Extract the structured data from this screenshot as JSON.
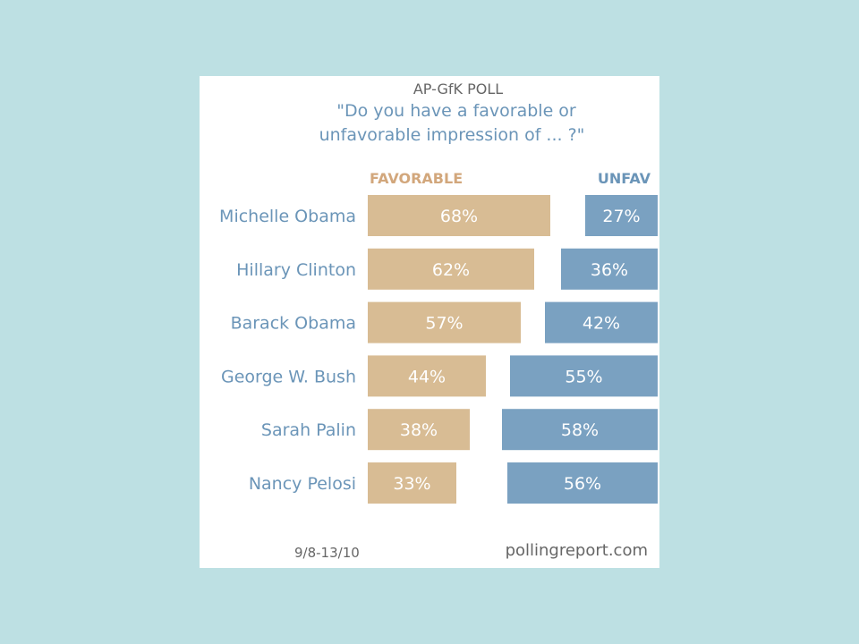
{
  "chart_data": {
    "type": "bar",
    "title": "AP-GfK POLL",
    "question_line1": "\"Do you have a favorable or",
    "question_line2": "unfavorable impression of ... ?\"",
    "series_labels": {
      "favorable": "FAVORABLE",
      "unfavorable": "UNFAV"
    },
    "categories": [
      "Michelle Obama",
      "Hillary Clinton",
      "Barack Obama",
      "George W. Bush",
      "Sarah Palin",
      "Nancy Pelosi"
    ],
    "series": [
      {
        "name": "FAVORABLE",
        "values": [
          68,
          62,
          57,
          44,
          38,
          33
        ]
      },
      {
        "name": "UNFAV",
        "values": [
          27,
          36,
          42,
          55,
          58,
          56
        ]
      }
    ],
    "value_suffix": "%",
    "colors": {
      "favorable": "#d8bc94",
      "unfavorable": "#7aa1c1",
      "label_blue": "#6b95b8",
      "favorable_header": "#d2a77c"
    },
    "date": "9/8-13/10",
    "source": "pollingreport.com"
  }
}
